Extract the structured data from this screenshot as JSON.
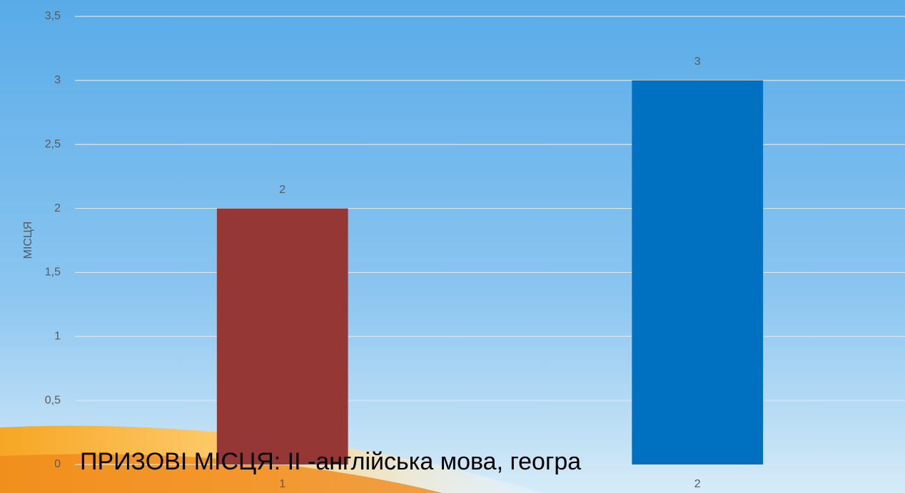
{
  "chart_data": {
    "type": "bar",
    "y_label": "МІСЦЯ",
    "categories": [
      "1",
      "2"
    ],
    "values": [
      2,
      3
    ],
    "colors": [
      "#953735",
      "#0070c0"
    ],
    "ylim": [
      0,
      3.5
    ],
    "yticks": [
      0,
      {
        "value": 0.5,
        "label": "0,5"
      },
      1,
      {
        "value": 1.5,
        "label": "1,5"
      },
      2,
      {
        "value": 2.5,
        "label": "2,5"
      },
      3,
      {
        "value": 3.5,
        "label": "3,5"
      }
    ],
    "grid": true,
    "annotation": "ПРИЗОВІ МІСЦЯ:  ІІ -англійська мова, геогра"
  }
}
